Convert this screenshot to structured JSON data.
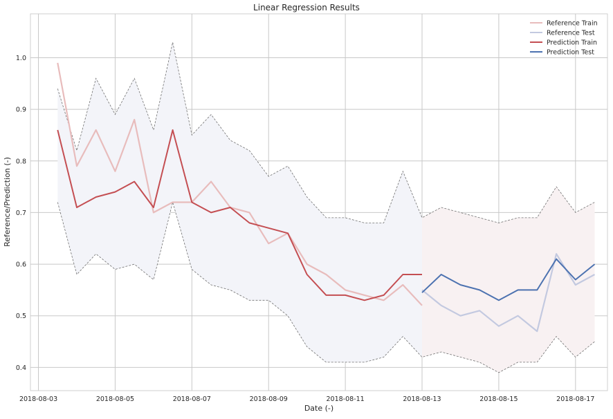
{
  "chart_data": {
    "type": "line",
    "title": "Linear Regression Results",
    "xlabel": "Date (-)",
    "ylabel": "Reference/Prediction (-)",
    "x_tick_labels": [
      "2018-08-03",
      "2018-08-05",
      "2018-08-07",
      "2018-08-09",
      "2018-08-11",
      "2018-08-13",
      "2018-08-15",
      "2018-08-17"
    ],
    "y_tick_labels": [
      "0.4",
      "0.5",
      "0.6",
      "0.7",
      "0.8",
      "0.9",
      "1.0"
    ],
    "xlim": [
      "2018-08-02T19:00",
      "2018-08-17T20:00"
    ],
    "ylim": [
      0.355,
      1.085
    ],
    "grid": true,
    "legend_position": "top-right",
    "colors": {
      "reference_train": "#e8bcbc",
      "reference_test": "#c3c9e0",
      "prediction_train": "#c44e52",
      "prediction_test": "#4c72b0",
      "band_train": "#f3f4f9",
      "band_test": "#f8f1f2",
      "bound": "#707070",
      "grid": "#c8c8c8"
    },
    "x": [
      "2018-08-03T12:00",
      "2018-08-04T00:00",
      "2018-08-04T12:00",
      "2018-08-05T00:00",
      "2018-08-05T12:00",
      "2018-08-06T00:00",
      "2018-08-06T12:00",
      "2018-08-07T00:00",
      "2018-08-07T12:00",
      "2018-08-08T00:00",
      "2018-08-08T12:00",
      "2018-08-09T00:00",
      "2018-08-09T12:00",
      "2018-08-10T00:00",
      "2018-08-10T12:00",
      "2018-08-11T00:00",
      "2018-08-11T12:00",
      "2018-08-12T00:00",
      "2018-08-12T12:00",
      "2018-08-13T00:00",
      "2018-08-13T12:00",
      "2018-08-14T00:00",
      "2018-08-14T12:00",
      "2018-08-15T00:00",
      "2018-08-15T12:00",
      "2018-08-16T00:00",
      "2018-08-16T12:00",
      "2018-08-17T00:00",
      "2018-08-17T12:00"
    ],
    "series": [
      {
        "name": "Reference Train",
        "key": "reference_train",
        "values": [
          0.99,
          0.79,
          0.86,
          0.78,
          0.88,
          0.7,
          0.72,
          0.72,
          0.76,
          0.71,
          0.7,
          0.64,
          0.66,
          0.6,
          0.58,
          0.55,
          0.54,
          0.53,
          0.56,
          0.52,
          null,
          null,
          null,
          null,
          null,
          null,
          null,
          null,
          null
        ]
      },
      {
        "name": "Reference Test",
        "key": "reference_test",
        "values": [
          null,
          null,
          null,
          null,
          null,
          null,
          null,
          null,
          null,
          null,
          null,
          null,
          null,
          null,
          null,
          null,
          null,
          null,
          null,
          0.55,
          0.52,
          0.5,
          0.51,
          0.48,
          0.5,
          0.47,
          0.62,
          0.56,
          0.58
        ]
      },
      {
        "name": "Prediction Train",
        "key": "prediction_train",
        "values": [
          0.86,
          0.71,
          0.73,
          0.74,
          0.76,
          0.71,
          0.86,
          0.72,
          0.7,
          0.71,
          0.68,
          0.67,
          0.66,
          0.58,
          0.54,
          0.54,
          0.53,
          0.54,
          0.58,
          0.58,
          null,
          null,
          null,
          null,
          null,
          null,
          null,
          null,
          null
        ]
      },
      {
        "name": "Prediction Test",
        "key": "prediction_test",
        "values": [
          null,
          null,
          null,
          null,
          null,
          null,
          null,
          null,
          null,
          null,
          null,
          null,
          null,
          null,
          null,
          null,
          null,
          null,
          null,
          0.545,
          0.58,
          0.56,
          0.55,
          0.53,
          0.55,
          0.55,
          0.61,
          0.57,
          0.6
        ]
      }
    ],
    "upper_bound": [
      0.94,
      0.82,
      0.96,
      0.89,
      0.96,
      0.86,
      1.03,
      0.85,
      0.89,
      0.84,
      0.82,
      0.77,
      0.79,
      0.73,
      0.69,
      0.69,
      0.68,
      0.68,
      0.78,
      0.69,
      0.71,
      0.7,
      0.69,
      0.68,
      0.69,
      0.69,
      0.75,
      0.7,
      0.72
    ],
    "lower_bound": [
      0.72,
      0.58,
      0.62,
      0.59,
      0.6,
      0.57,
      0.72,
      0.59,
      0.56,
      0.55,
      0.53,
      0.53,
      0.5,
      0.44,
      0.41,
      0.41,
      0.41,
      0.42,
      0.46,
      0.42,
      0.43,
      0.42,
      0.41,
      0.39,
      0.41,
      0.41,
      0.46,
      0.42,
      0.45
    ]
  }
}
